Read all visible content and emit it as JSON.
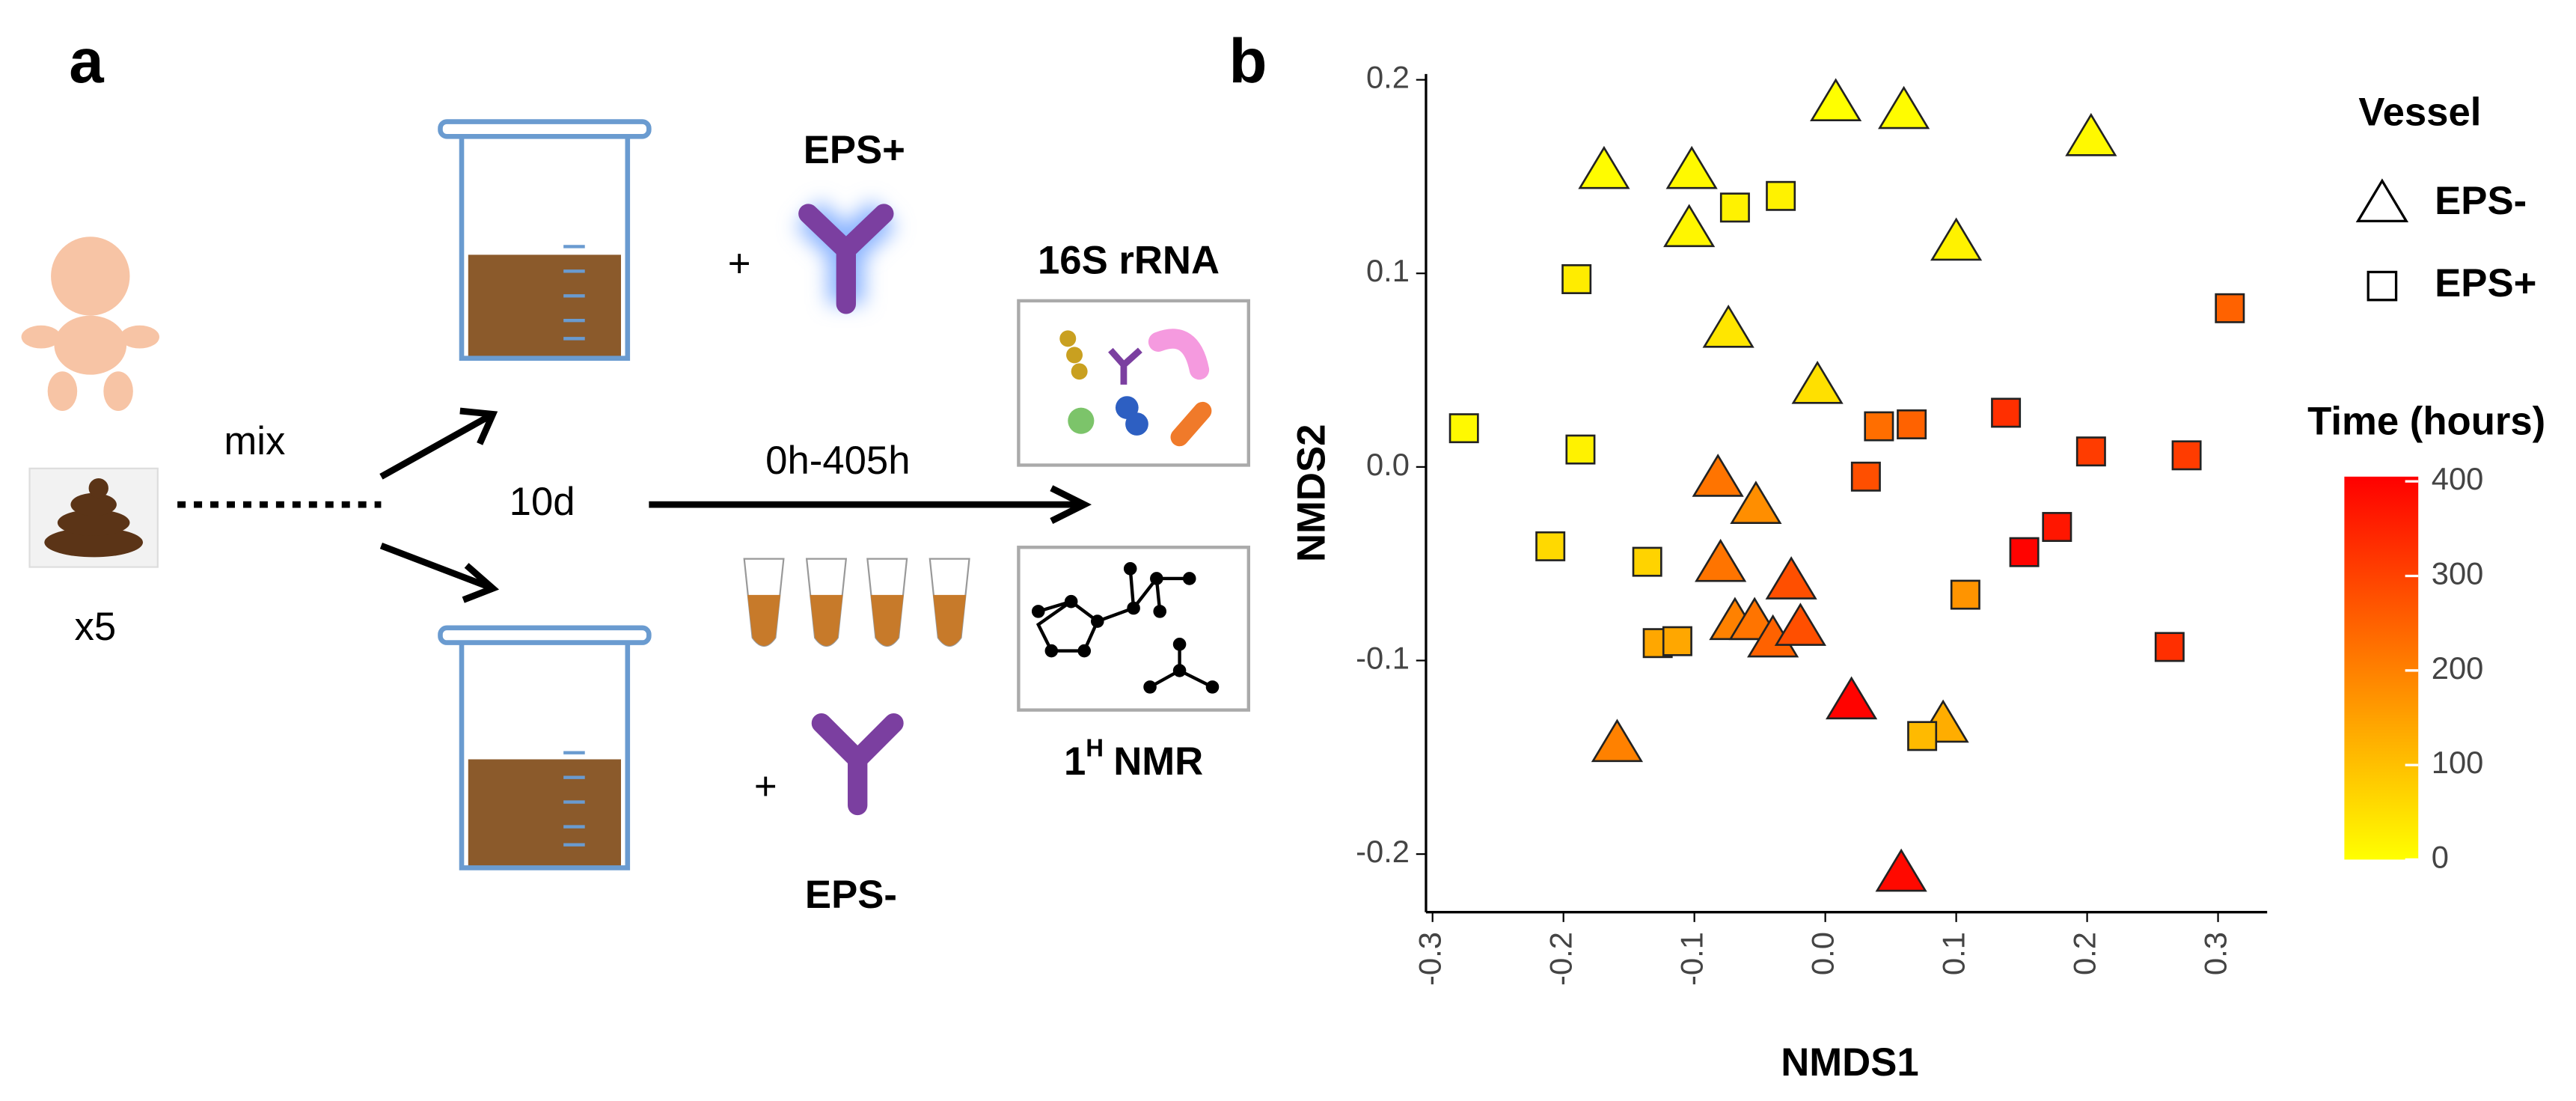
{
  "panel_a": {
    "label": "a",
    "mix": "mix",
    "count": "x5",
    "duration": "10d",
    "sampling": "0h-405h",
    "eps_plus": "EPS+",
    "eps_minus": "EPS-",
    "plus_top": "+",
    "plus_bottom": "+",
    "sequencing": "16S rRNA",
    "nmr": {
      "number": "1",
      "superscript": "H",
      "text": "NMR"
    }
  },
  "chart_data": {
    "type": "scatter",
    "panel_label": "b",
    "x_label": "NMDS1",
    "y_label": "NMDS2",
    "xlim": [
      -0.305,
      0.3375
    ],
    "ylim": [
      -0.23,
      0.203
    ],
    "xticks": [
      -0.3,
      -0.2,
      -0.1,
      {
        "value": 0,
        "label": "0.0"
      },
      0.1,
      0.2,
      0.3
    ],
    "yticks": [
      -0.2,
      -0.1,
      {
        "value": 0,
        "label": "0.0"
      },
      0.1,
      0.2
    ],
    "legend_title": "Vessel",
    "color_title": "Time (hours)",
    "color_lim": [
      0,
      405
    ],
    "color_ticks": [
      0,
      100,
      200,
      300,
      400
    ],
    "colormap": [
      "#ffff00",
      "#ff0000"
    ],
    "series": [
      {
        "name": "EPS-",
        "marker": "triangle",
        "x": [
          0.008,
          0.06,
          0.203,
          -0.169,
          -0.102,
          -0.104,
          0.1,
          -0.074,
          -0.006,
          -0.082,
          -0.053,
          -0.08,
          -0.026,
          -0.069,
          -0.054,
          -0.04,
          -0.019,
          0.02,
          0.09,
          -0.159,
          0.058
        ],
        "y": [
          0.188,
          0.184,
          0.17,
          0.153,
          0.153,
          0.123,
          0.116,
          0.071,
          0.042,
          -0.006,
          -0.02,
          -0.05,
          -0.059,
          -0.08,
          -0.08,
          -0.089,
          -0.083,
          -0.121,
          -0.133,
          -0.143,
          -0.21
        ],
        "time": [
          0,
          5,
          10,
          5,
          10,
          15,
          20,
          40,
          50,
          220,
          180,
          220,
          280,
          200,
          220,
          250,
          280,
          400,
          130,
          200,
          390
        ]
      },
      {
        "name": "EPS+",
        "marker": "square",
        "x": [
          -0.034,
          -0.069,
          -0.19,
          0.309,
          -0.276,
          -0.187,
          0.041,
          0.066,
          0.138,
          0.031,
          0.203,
          0.276,
          0.177,
          0.152,
          -0.21,
          -0.136,
          0.107,
          -0.128,
          -0.113,
          0.263,
          0.074
        ],
        "y": [
          0.14,
          0.134,
          0.097,
          0.082,
          0.02,
          0.009,
          0.021,
          0.022,
          0.028,
          -0.005,
          0.008,
          0.006,
          -0.031,
          -0.044,
          -0.041,
          -0.049,
          -0.066,
          -0.091,
          -0.09,
          -0.093,
          -0.139
        ],
        "time": [
          20,
          20,
          30,
          250,
          10,
          20,
          230,
          250,
          330,
          280,
          310,
          310,
          370,
          400,
          60,
          70,
          170,
          140,
          140,
          330,
          110
        ]
      }
    ]
  }
}
